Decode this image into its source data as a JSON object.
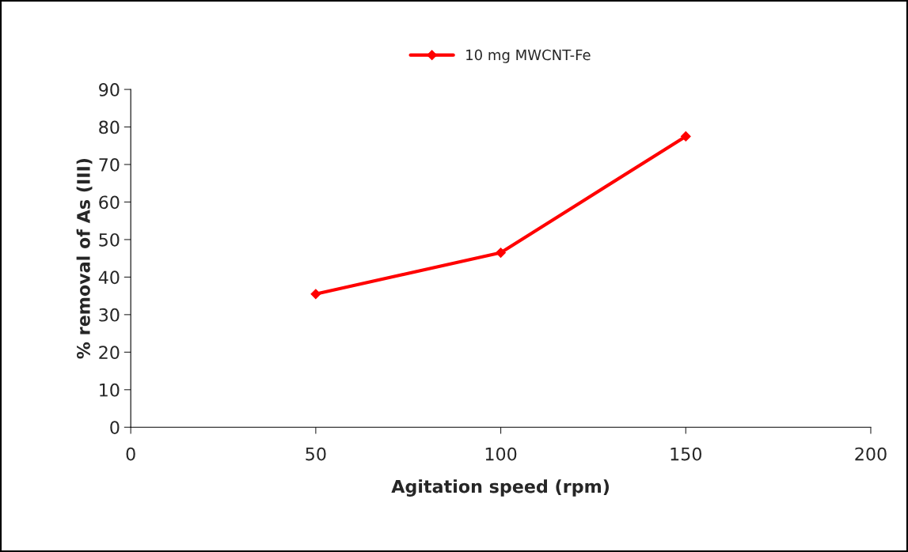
{
  "chart_data": {
    "type": "line",
    "xlabel": "Agitation speed (rpm)",
    "ylabel": "% removal of As (III)",
    "x": [
      50,
      100,
      150
    ],
    "series": [
      {
        "name": "10 mg MWCNT-Fe",
        "color": "#ff0000",
        "values": [
          35.5,
          46.5,
          77.5
        ]
      }
    ],
    "xlim": [
      0,
      200
    ],
    "xticks": [
      0,
      50,
      100,
      150,
      200
    ],
    "ylim": [
      0,
      90
    ],
    "yticks": [
      0,
      10,
      20,
      30,
      40,
      50,
      60,
      70,
      80,
      90
    ],
    "grid": false,
    "legend": "top",
    "marker": "diamond",
    "line_style": "solid"
  }
}
